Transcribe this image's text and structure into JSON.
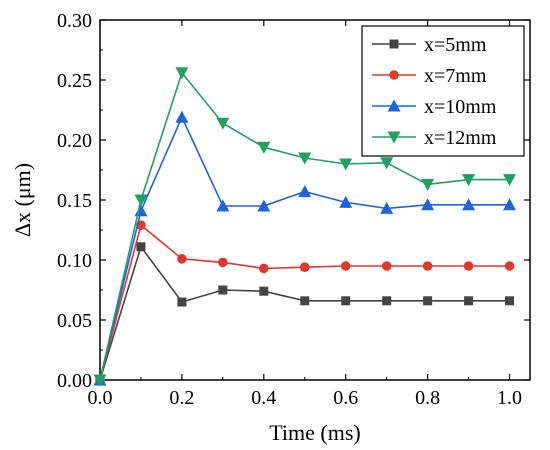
{
  "chart_data": {
    "type": "line",
    "xlabel": "Time (ms)",
    "ylabel": "Δx (μm)",
    "xlim": [
      0.0,
      1.05
    ],
    "ylim": [
      0.0,
      0.3
    ],
    "xticks": [
      "0.0",
      "0.2",
      "0.4",
      "0.6",
      "0.8",
      "1.0"
    ],
    "yticks": [
      "0.00",
      "0.05",
      "0.10",
      "0.15",
      "0.20",
      "0.25",
      "0.30"
    ],
    "grid": false,
    "legend_position": "top-right",
    "x": [
      0.0,
      0.1,
      0.2,
      0.3,
      0.4,
      0.5,
      0.6,
      0.7,
      0.8,
      0.9,
      1.0
    ],
    "series": [
      {
        "name": "x=5mm",
        "color": "#444444",
        "marker": "square",
        "values": [
          0.0,
          0.111,
          0.065,
          0.075,
          0.074,
          0.066,
          0.066,
          0.066,
          0.066,
          0.066,
          0.066
        ]
      },
      {
        "name": "x=7mm",
        "color": "#e0392b",
        "marker": "circle",
        "values": [
          0.0,
          0.129,
          0.101,
          0.098,
          0.093,
          0.094,
          0.095,
          0.095,
          0.095,
          0.095,
          0.095
        ]
      },
      {
        "name": "x=10mm",
        "color": "#1f63e0",
        "marker": "triangle-up",
        "values": [
          0.0,
          0.141,
          0.219,
          0.145,
          0.145,
          0.157,
          0.148,
          0.143,
          0.146,
          0.146,
          0.146
        ]
      },
      {
        "name": "x=12mm",
        "color": "#1ea066",
        "marker": "triangle-down",
        "values": [
          0.0,
          0.15,
          0.256,
          0.214,
          0.194,
          0.185,
          0.18,
          0.181,
          0.163,
          0.167,
          0.167
        ]
      }
    ]
  }
}
